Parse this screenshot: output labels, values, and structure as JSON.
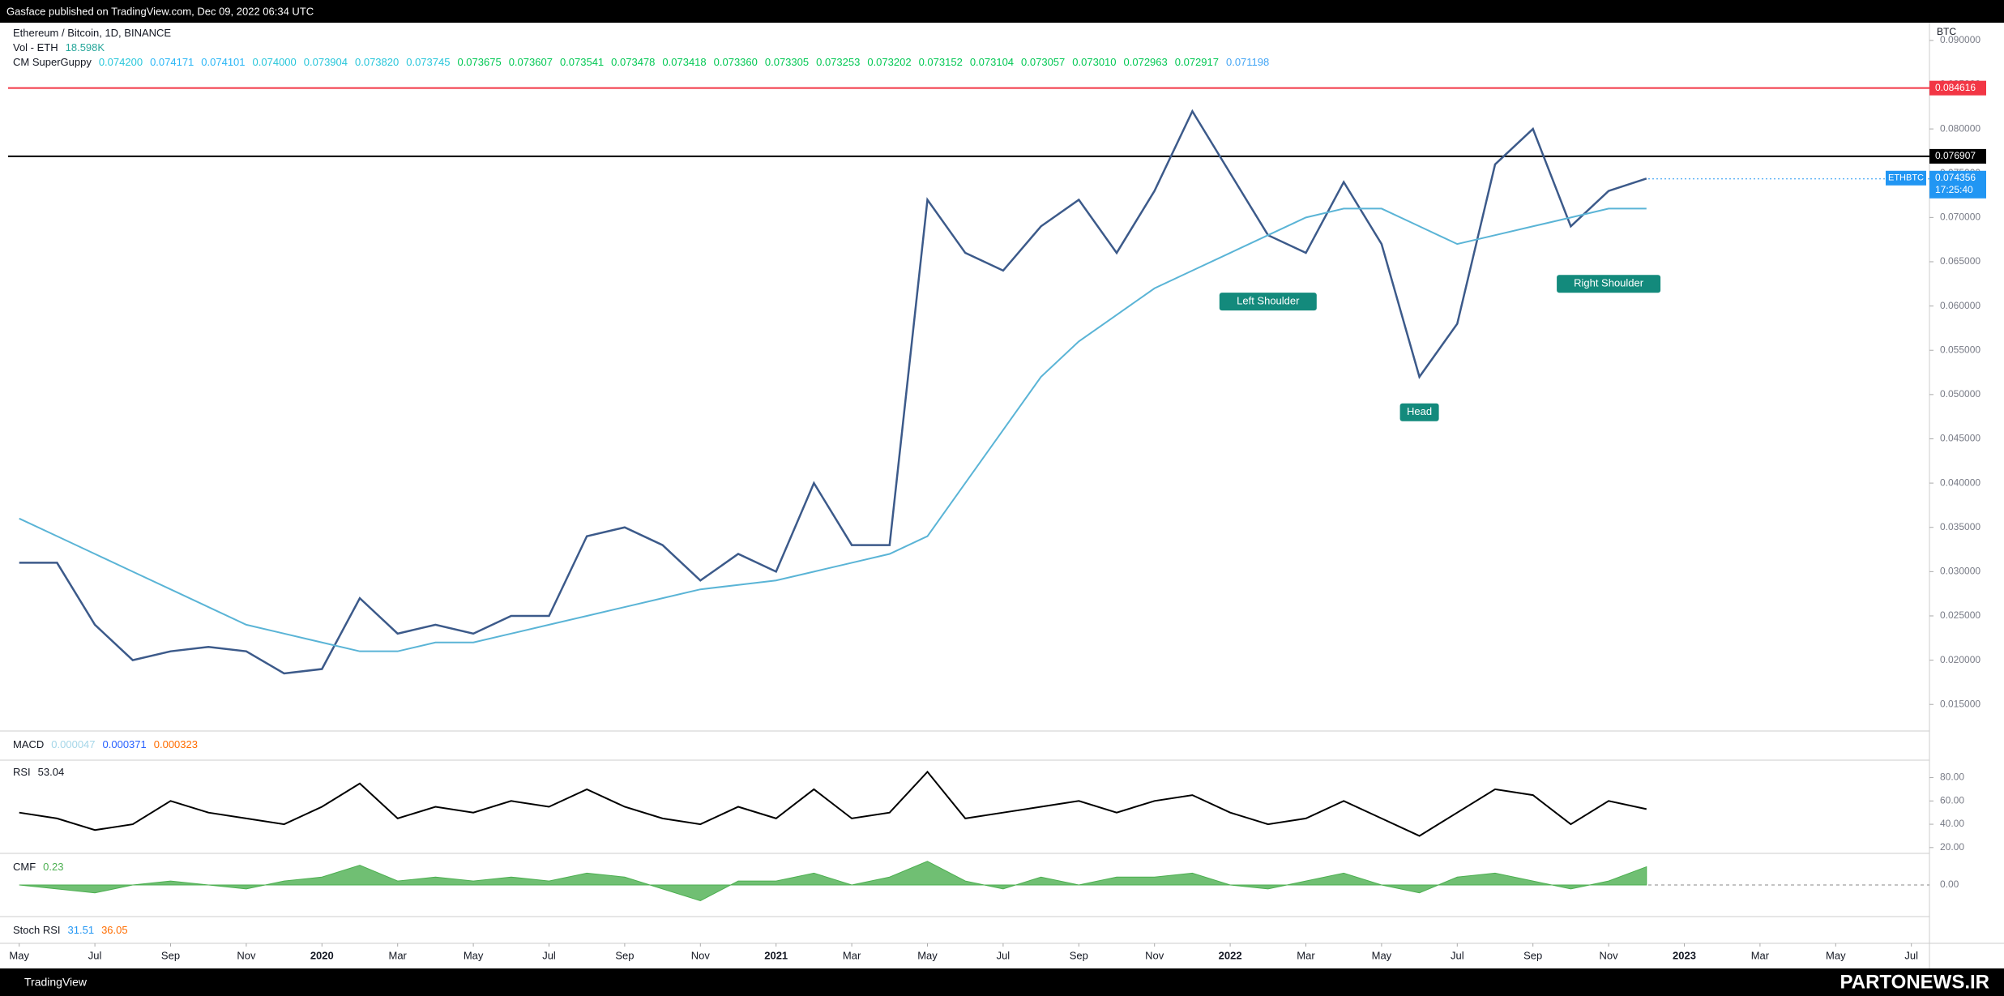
{
  "header": "Gasface published on TradingView.com, Dec 09, 2022 06:34 UTC",
  "legend": {
    "symbol": "Ethereum / Bitcoin, 1D, BINANCE",
    "volume_name": "Vol - ETH",
    "volume_value": "18.598K",
    "superguppy": {
      "name": "CM SuperGuppy",
      "values": [
        "0.074200",
        "0.074171",
        "0.074101",
        "0.074000",
        "0.073904",
        "0.073820",
        "0.073745",
        "0.073675",
        "0.073607",
        "0.073541",
        "0.073478",
        "0.073418",
        "0.073360",
        "0.073305",
        "0.073253",
        "0.073202",
        "0.073152",
        "0.073104",
        "0.073057",
        "0.073010",
        "0.072963",
        "0.072917",
        "0.071198"
      ],
      "colors": [
        "#26c6da",
        "#29b6f6",
        "#29b6f6",
        "#26c6da",
        "#26c6da",
        "#26c6da",
        "#26c6da",
        "#00c853",
        "#00c853",
        "#00c853",
        "#00c853",
        "#00c853",
        "#00c853",
        "#00c853",
        "#00c853",
        "#00c853",
        "#00c853",
        "#00c853",
        "#00c853",
        "#00c853",
        "#00c853",
        "#00c853",
        "#42a5f5"
      ]
    }
  },
  "chart_data": {
    "type": "line",
    "currency": "BTC",
    "x": [
      "2019-05",
      "2019-06",
      "2019-07",
      "2019-08",
      "2019-09",
      "2019-10",
      "2019-11",
      "2019-12",
      "2020-01",
      "2020-02",
      "2020-03",
      "2020-04",
      "2020-05",
      "2020-06",
      "2020-07",
      "2020-08",
      "2020-09",
      "2020-10",
      "2020-11",
      "2020-12",
      "2021-01",
      "2021-02",
      "2021-03",
      "2021-04",
      "2021-05",
      "2021-06",
      "2021-07",
      "2021-08",
      "2021-09",
      "2021-10",
      "2021-11",
      "2021-12",
      "2022-01",
      "2022-02",
      "2022-03",
      "2022-04",
      "2022-05",
      "2022-06",
      "2022-07",
      "2022-08",
      "2022-09",
      "2022-10",
      "2022-11",
      "2022-12"
    ],
    "series": [
      {
        "name": "Price",
        "color": "#3c5a8a",
        "values": [
          0.031,
          0.031,
          0.024,
          0.02,
          0.021,
          0.0215,
          0.021,
          0.0185,
          0.019,
          0.027,
          0.023,
          0.024,
          0.023,
          0.025,
          0.025,
          0.034,
          0.035,
          0.033,
          0.029,
          0.032,
          0.03,
          0.04,
          0.033,
          0.033,
          0.072,
          0.066,
          0.064,
          0.069,
          0.072,
          0.066,
          0.073,
          0.082,
          0.075,
          0.068,
          0.066,
          0.074,
          0.067,
          0.052,
          0.058,
          0.076,
          0.08,
          0.069,
          0.073,
          0.0744
        ]
      },
      {
        "name": "MA",
        "color": "#5ab4d6",
        "values": [
          0.036,
          0.034,
          0.032,
          0.03,
          0.028,
          0.026,
          0.024,
          0.023,
          0.022,
          0.021,
          0.021,
          0.022,
          0.022,
          0.023,
          0.024,
          0.025,
          0.026,
          0.027,
          0.028,
          0.0285,
          0.029,
          0.03,
          0.031,
          0.032,
          0.034,
          0.04,
          0.046,
          0.052,
          0.056,
          0.059,
          0.062,
          0.064,
          0.066,
          0.068,
          0.07,
          0.071,
          0.071,
          0.069,
          0.067,
          0.068,
          0.069,
          0.07,
          0.071,
          0.071
        ]
      }
    ],
    "ylim": [
      0.012,
      0.092
    ],
    "yticks": [
      {
        "value": 0.015,
        "label": "0.015000"
      },
      {
        "value": 0.02,
        "label": "0.020000"
      },
      {
        "value": 0.025,
        "label": "0.025000"
      },
      {
        "value": 0.03,
        "label": "0.030000"
      },
      {
        "value": 0.035,
        "label": "0.035000"
      },
      {
        "value": 0.04,
        "label": "0.040000"
      },
      {
        "value": 0.045,
        "label": "0.045000"
      },
      {
        "value": 0.05,
        "label": "0.050000"
      },
      {
        "value": 0.055,
        "label": "0.055000"
      },
      {
        "value": 0.06,
        "label": "0.060000"
      },
      {
        "value": 0.065,
        "label": "0.065000"
      },
      {
        "value": 0.07,
        "label": "0.070000"
      },
      {
        "value": 0.075,
        "label": "0.075000"
      },
      {
        "value": 0.08,
        "label": "0.080000"
      },
      {
        "value": 0.085,
        "label": "0.085000"
      },
      {
        "value": 0.09,
        "label": "0.090000"
      }
    ],
    "xticks": [
      {
        "value": "2019-05",
        "label": "May"
      },
      {
        "value": "2019-07",
        "label": "Jul"
      },
      {
        "value": "2019-09",
        "label": "Sep"
      },
      {
        "value": "2019-11",
        "label": "Nov"
      },
      {
        "value": "2020-01",
        "label": "2020"
      },
      {
        "value": "2020-03",
        "label": "Mar"
      },
      {
        "value": "2020-05",
        "label": "May"
      },
      {
        "value": "2020-07",
        "label": "Jul"
      },
      {
        "value": "2020-09",
        "label": "Sep"
      },
      {
        "value": "2020-11",
        "label": "Nov"
      },
      {
        "value": "2021-01",
        "label": "2021"
      },
      {
        "value": "2021-03",
        "label": "Mar"
      },
      {
        "value": "2021-05",
        "label": "May"
      },
      {
        "value": "2021-07",
        "label": "Jul"
      },
      {
        "value": "2021-09",
        "label": "Sep"
      },
      {
        "value": "2021-11",
        "label": "Nov"
      },
      {
        "value": "2022-01",
        "label": "2022"
      },
      {
        "value": "2022-03",
        "label": "Mar"
      },
      {
        "value": "2022-05",
        "label": "May"
      },
      {
        "value": "2022-07",
        "label": "Jul"
      },
      {
        "value": "2022-09",
        "label": "Sep"
      },
      {
        "value": "2022-11",
        "label": "Nov"
      },
      {
        "value": "2023-01",
        "label": "2023"
      },
      {
        "value": "2023-03",
        "label": "Mar"
      },
      {
        "value": "2023-05",
        "label": "May"
      },
      {
        "value": "2023-07",
        "label": "Jul"
      }
    ],
    "levels": [
      {
        "value": 0.084616,
        "color": "#f23645"
      },
      {
        "value": 0.076907,
        "color": "#000000"
      }
    ],
    "last_price": {
      "symbol": "ETHBTC",
      "value": 0.074356,
      "countdown": "17:25:40",
      "color": "#2196f3"
    },
    "annotations": [
      {
        "text": "Left Shoulder",
        "x": "2022-02",
        "y": 0.0605
      },
      {
        "text": "Head",
        "x": "2022-06",
        "y": 0.048
      },
      {
        "text": "Right Shoulder",
        "x": "2022-11",
        "y": 0.0625
      }
    ]
  },
  "macd": {
    "name": "MACD",
    "values": [
      "0.000047",
      "0.000371",
      "0.000323"
    ],
    "colors": [
      "#a5d6e8",
      "#2962ff",
      "#ff6d00"
    ]
  },
  "rsi": {
    "name": "RSI",
    "value": "53.04",
    "color": "#000000",
    "ylim": [
      15,
      95
    ],
    "yticks": [
      {
        "value": 20,
        "label": "20.00"
      },
      {
        "value": 40,
        "label": "40.00"
      },
      {
        "value": 60,
        "label": "60.00"
      },
      {
        "value": 80,
        "label": "80.00"
      }
    ],
    "values": [
      50,
      45,
      35,
      40,
      60,
      50,
      45,
      40,
      55,
      75,
      45,
      55,
      50,
      60,
      55,
      70,
      55,
      45,
      40,
      55,
      45,
      70,
      45,
      50,
      85,
      45,
      50,
      55,
      60,
      50,
      60,
      65,
      50,
      40,
      45,
      60,
      45,
      30,
      50,
      70,
      65,
      40,
      60,
      53
    ]
  },
  "cmf": {
    "name": "CMF",
    "value": "0.23",
    "color": "#4caf50",
    "ylim": [
      -0.4,
      0.4
    ],
    "yticks": [
      {
        "value": 0,
        "label": "0.00"
      }
    ],
    "values": [
      0.0,
      -0.05,
      -0.1,
      0.0,
      0.05,
      0.0,
      -0.05,
      0.05,
      0.1,
      0.25,
      0.05,
      0.1,
      0.05,
      0.1,
      0.05,
      0.15,
      0.1,
      -0.05,
      -0.2,
      0.05,
      0.05,
      0.15,
      0.0,
      0.1,
      0.3,
      0.05,
      -0.05,
      0.1,
      0.0,
      0.1,
      0.1,
      0.15,
      0.0,
      -0.05,
      0.05,
      0.15,
      0.0,
      -0.1,
      0.1,
      0.15,
      0.05,
      -0.05,
      0.05,
      0.23
    ]
  },
  "stoch_rsi": {
    "name": "Stoch RSI",
    "values": [
      "31.51",
      "36.05"
    ],
    "colors": [
      "#2196f3",
      "#ff6d00"
    ]
  },
  "footer": "TradingView",
  "watermark": "PARTONEWS.IR"
}
